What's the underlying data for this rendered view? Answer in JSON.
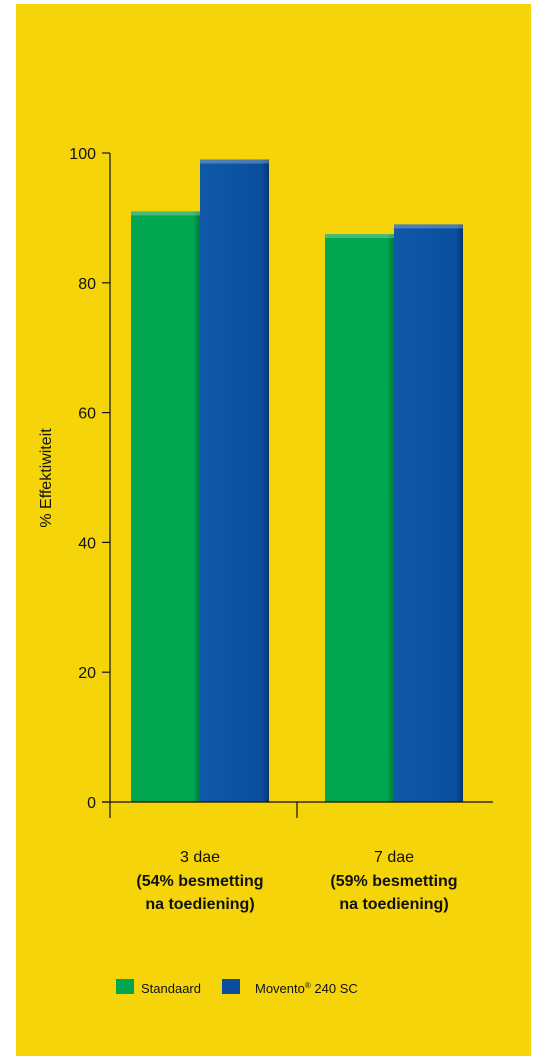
{
  "chart_data": {
    "type": "bar",
    "ylabel": "% Effektiwiteit",
    "ylim": [
      0,
      100
    ],
    "yticks": [
      0,
      20,
      40,
      60,
      80,
      100
    ],
    "categories": [
      {
        "line1": "3 dae",
        "line2": "(54% besmetting",
        "line3": "na toediening)"
      },
      {
        "line1": "7 dae",
        "line2": "(59% besmetting",
        "line3": "na toediening)"
      }
    ],
    "series": [
      {
        "name": "Standaard",
        "color": "#00a650",
        "values": [
          91,
          87.5
        ]
      },
      {
        "name": "Movento",
        "name_sup": "®",
        "name_suffix": " 240 SC",
        "color": "#0a4f9e",
        "values": [
          99,
          89
        ]
      }
    ],
    "legend": "bottom-left"
  }
}
